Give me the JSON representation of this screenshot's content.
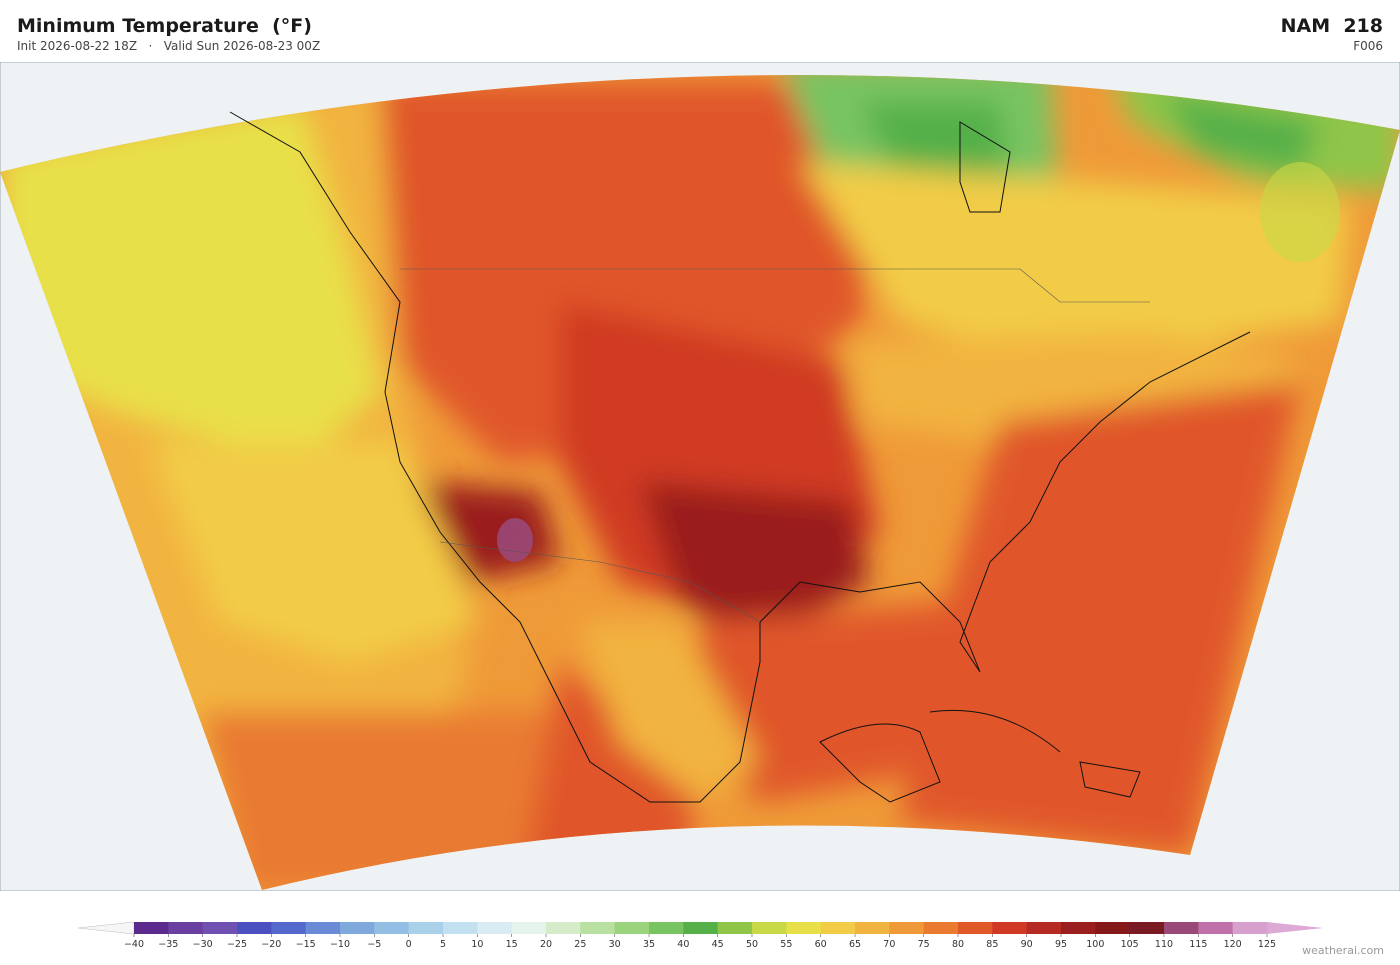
{
  "header": {
    "title": "Minimum Temperature  (°F)",
    "subtitle": "Init 2026-08-22 18Z   ·   Valid Sun 2026-08-23 00Z",
    "model": "NAM  218",
    "forecast_hour": "F006"
  },
  "colorbar": {
    "ticks": [
      {
        "value": -40,
        "label": "−40"
      },
      {
        "value": -35,
        "label": "−35"
      },
      {
        "value": -30,
        "label": "−30"
      },
      {
        "value": -25,
        "label": "−25"
      },
      {
        "value": -20,
        "label": "−20"
      },
      {
        "value": -15,
        "label": "−15"
      },
      {
        "value": -10,
        "label": "−10"
      },
      {
        "value": -5,
        "label": "−5"
      },
      0,
      5,
      10,
      15,
      20,
      25,
      30,
      35,
      40,
      45,
      50,
      55,
      60,
      65,
      70,
      75,
      80,
      85,
      90,
      95,
      100,
      105,
      110,
      115,
      120,
      125
    ],
    "colors": [
      "#5b2a8c",
      "#6b3fa0",
      "#7050b0",
      "#4b4fbf",
      "#5468cc",
      "#6a8ad6",
      "#7fa8dc",
      "#93bfe4",
      "#a9d1ea",
      "#c2e0ef",
      "#d8ecf2",
      "#e6f2ec",
      "#d4ecc8",
      "#b8e0a0",
      "#9bd47c",
      "#78c462",
      "#55b04a",
      "#8fc64a",
      "#c8d846",
      "#e8e048",
      "#f2cc46",
      "#f2b440",
      "#ef9a38",
      "#e97a30",
      "#e0572a",
      "#d03a24",
      "#b52a22",
      "#9a1e1e",
      "#851818",
      "#7a1a22",
      "#9a4878",
      "#c070a8",
      "#d8a0cc"
    ],
    "under_color": "#f6f6f6",
    "over_color": "#dcaad4"
  },
  "watermark": "weatherai.com"
}
